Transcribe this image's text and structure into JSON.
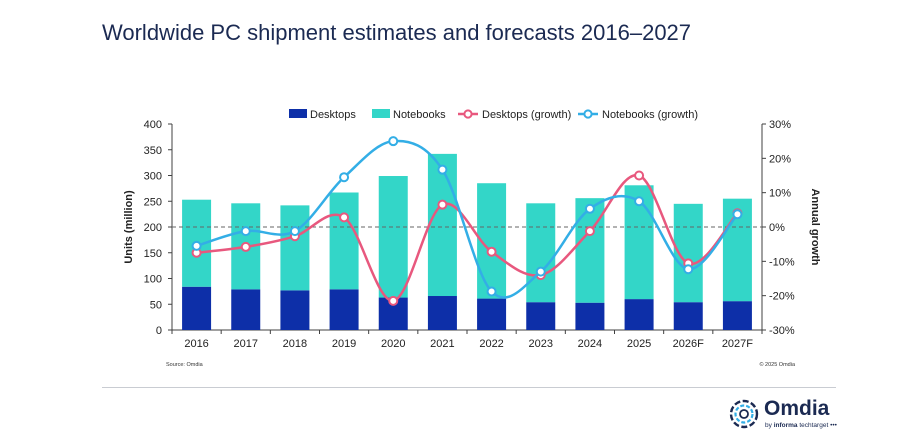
{
  "title": "Worldwide PC shipment estimates and forecasts 2016–2027",
  "source": "Source: Omdia",
  "copyright": "© 2025 Omdia",
  "logo": {
    "name": "Omdia",
    "tagline_prefix": "by",
    "tagline_brand": "informa",
    "tagline_suffix": "techtarget"
  },
  "colors": {
    "desktops": "#0d2fa8",
    "notebooks": "#33d6c8",
    "desktops_growth": "#e8587e",
    "notebooks_growth": "#33aee6",
    "text": "#1b2a52"
  },
  "chart_data": {
    "type": "bar+line",
    "categories": [
      "2016",
      "2017",
      "2018",
      "2019",
      "2020",
      "2021",
      "2022",
      "2023",
      "2024",
      "2025",
      "2026F",
      "2027F"
    ],
    "bar_series": [
      {
        "name": "Desktops",
        "values": [
          84,
          79,
          77,
          79,
          63,
          66,
          61,
          54,
          53,
          60,
          54,
          56
        ]
      },
      {
        "name": "Notebooks",
        "values": [
          169,
          167,
          165,
          188,
          236,
          276,
          224,
          192,
          203,
          221,
          191,
          199
        ]
      }
    ],
    "line_series": [
      {
        "name": "Desktops (growth)",
        "values": [
          -7.5,
          -5.8,
          -2.7,
          2.8,
          -21.5,
          6.5,
          -7.2,
          -14.0,
          -1.2,
          15.0,
          -10.6,
          4.0
        ]
      },
      {
        "name": "Notebooks (growth)",
        "values": [
          -5.5,
          -1.2,
          -1.2,
          14.5,
          25.0,
          16.7,
          -18.8,
          -13.0,
          5.3,
          7.5,
          -12.3,
          3.7
        ]
      }
    ],
    "ylabel": "Units (million)",
    "y2label": "Annual growth",
    "ylim": [
      0,
      400
    ],
    "yticks": [
      "0",
      "50",
      "100",
      "150",
      "200",
      "250",
      "300",
      "350",
      "400"
    ],
    "y2lim": [
      -30,
      30
    ],
    "y2ticks": [
      "-30%",
      "-20%",
      "-10%",
      "0%",
      "10%",
      "20%",
      "30%"
    ],
    "legend_position": "top-center"
  }
}
